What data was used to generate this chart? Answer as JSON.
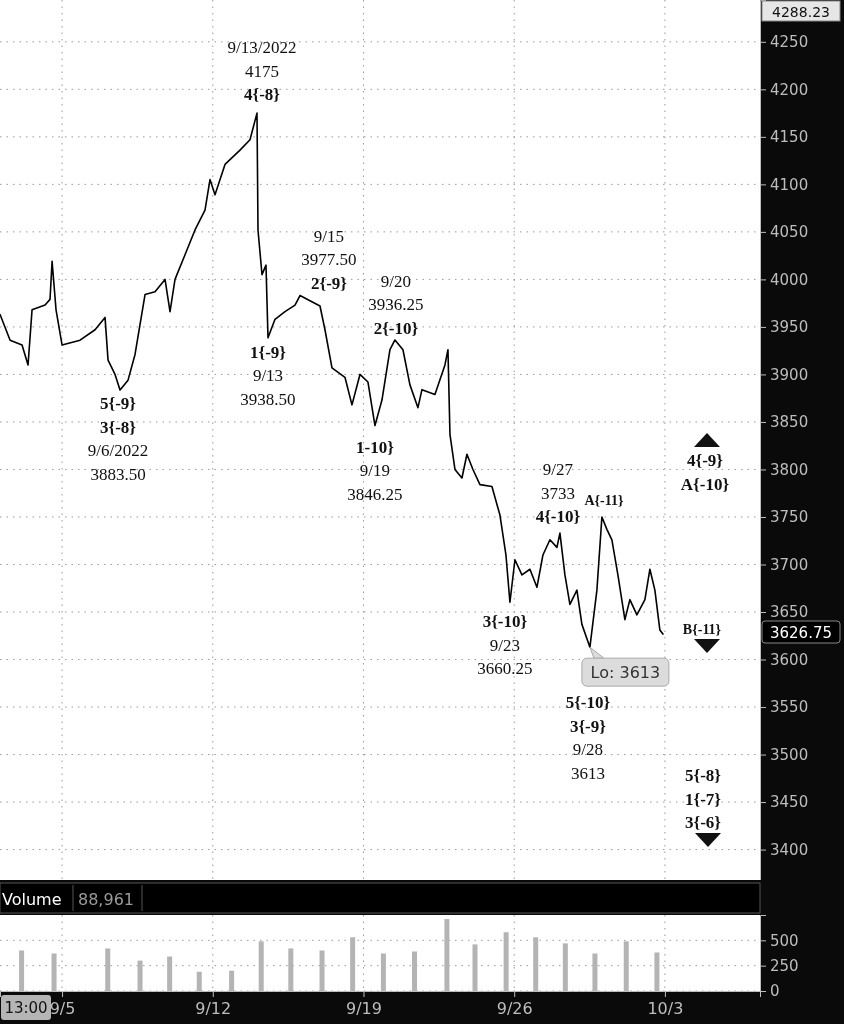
{
  "chart_data": [
    {
      "type": "line",
      "x": [
        "2022-09-02T02:54",
        "2022-09-02T14:05",
        "2022-09-03T03:24",
        "2022-09-03T10:06",
        "2022-09-03T14:34",
        "2022-09-04T05:04",
        "2022-09-04T10:36",
        "2022-09-04T12:54",
        "2022-09-04T17:18",
        "2022-09-05T00:00",
        "2022-09-05T20:04",
        "2022-09-06T12:47",
        "2022-09-06T23:55",
        "2022-09-07T03:16",
        "2022-09-07T11:04",
        "2022-09-07T16:38",
        "2022-09-08T01:33",
        "2022-09-08T09:21",
        "2022-09-08T20:30",
        "2022-09-09T07:38",
        "2022-09-09T18:47",
        "2022-09-10T00:21",
        "2022-09-10T05:55",
        "2022-09-10T17:04",
        "2022-09-11T04:12",
        "2022-09-11T15:21",
        "2022-09-11T20:55",
        "2022-09-12T02:30",
        "2022-09-12T13:38",
        "2022-09-13T06:22",
        "2022-09-13T17:30",
        "2022-09-14T01:18",
        "2022-09-14T02:25",
        "2022-09-14T06:53",
        "2022-09-14T11:20",
        "2022-09-14T13:34",
        "2022-09-14T21:22",
        "2022-09-15T08:31",
        "2022-09-15T19:40",
        "2022-09-16T01:14",
        "2022-09-16T12:22",
        "2022-09-16T23:31",
        "2022-09-17T05:05",
        "2022-09-17T12:53",
        "2022-09-18T03:22",
        "2022-09-18T11:10",
        "2022-09-18T20:05",
        "2022-09-19T05:00",
        "2022-09-19T12:48",
        "2022-09-19T20:36",
        "2022-09-20T05:31",
        "2022-09-20T11:05",
        "2022-09-20T20:00",
        "2022-09-21T03:48",
        "2022-09-21T12:43",
        "2022-09-21T17:11",
        "2022-09-22T07:40",
        "2022-09-22T18:49",
        "2022-09-22T22:10",
        "2022-09-23T00:24",
        "2022-09-23T05:58",
        "2022-09-23T13:46",
        "2022-09-23T19:20",
        "2022-09-24T02:01",
        "2022-09-24T09:49",
        "2022-09-24T23:11",
        "2022-09-25T08:07",
        "2022-09-25T14:48",
        "2022-09-25T19:15",
        "2022-09-26T00:50",
        "2022-09-26T08:38",
        "2022-09-26T17:33",
        "2022-09-27T01:21",
        "2022-09-27T08:02",
        "2022-09-27T15:50",
        "2022-09-27T23:38",
        "2022-09-28T02:59",
        "2022-09-28T08:33",
        "2022-09-28T14:07",
        "2022-09-28T21:55",
        "2022-09-29T03:29",
        "2022-09-29T12:24",
        "2022-09-29T20:12",
        "2022-09-30T01:46",
        "2022-09-30T07:20",
        "2022-09-30T12:55",
        "2022-09-30T19:36",
        "2022-10-01T03:24",
        "2022-10-01T08:58",
        "2022-10-01T16:46",
        "2022-10-02T01:42",
        "2022-10-02T07:16",
        "2022-10-02T12:50",
        "2022-10-02T18:24",
        "2022-10-02T21:46"
      ],
      "series": [
        {
          "color": "#000000",
          "values": [
            3963,
            3936,
            3931,
            3910,
            3968,
            3973,
            3979,
            4019,
            3968,
            3931,
            3936,
            3947,
            3960,
            3915,
            3900,
            3883.5,
            3894,
            3921,
            3984,
            3987,
            4000,
            3966,
            4000,
            4026,
            4052,
            4073,
            4105,
            4089,
            4121,
            4136,
            4147,
            4175,
            4052,
            4005,
            4015,
            3938.5,
            3958,
            3966,
            3973,
            3983,
            3977.5,
            3972,
            3947,
            3907,
            3897,
            3868,
            3900,
            3892,
            3846.25,
            3873,
            3926,
            3936.25,
            3926,
            3889,
            3865,
            3884,
            3879,
            3910,
            3926,
            3837,
            3800,
            3791,
            3816,
            3800,
            3784,
            3782,
            3752,
            3710,
            3660.25,
            3705,
            3689,
            3695,
            3676,
            3710,
            3726,
            3718,
            3733,
            3689,
            3658,
            3673,
            3637,
            3613,
            3673,
            3750,
            3737,
            3726,
            3689,
            3642,
            3663,
            3647,
            3663,
            3695,
            3673,
            3631,
            3626.75
          ]
        }
      ],
      "xlim": [
        "2022-09-02T02:50",
        "2022-10-07T10:00"
      ],
      "ylim": [
        3368,
        4294
      ],
      "xticks": [
        {
          "value": "2022-09-05",
          "label": null
        },
        {
          "value": "2022-09-12",
          "label": null
        },
        {
          "value": "2022-09-19",
          "label": null
        },
        {
          "value": "2022-09-26",
          "label": null
        },
        {
          "value": "2022-10-03",
          "label": null
        }
      ],
      "yticks": [
        3400,
        3450,
        3500,
        3550,
        3600,
        3650,
        3700,
        3750,
        3800,
        3850,
        3900,
        3950,
        4000,
        4050,
        4100,
        4150,
        4200,
        4250
      ],
      "tick_labels": "y",
      "grid": true,
      "marker": "none",
      "line_style": "solid",
      "annotations": [
        {
          "text": "9/13/2022\n4175\n4{-8}",
          "x": "2022-09-14T01:18",
          "y": 4175
        },
        {
          "text": "9/15\n3977.50\n2{-9}",
          "x": "2022-09-16T12:22",
          "y": 3977.5
        },
        {
          "text": "9/20\n3936.25\n2{-10}",
          "x": "2022-09-20T11:05",
          "y": 3936.25
        },
        {
          "text": "1{-9}\n9/13\n3938.50",
          "x": "2022-09-14T13:34",
          "y": 3938.5
        },
        {
          "text": "5{-9}\n3{-8}\n9/6/2022\n3883.50",
          "x": "2022-09-07T16:38",
          "y": 3883.5
        },
        {
          "text": "1-10}\n9/19\n3846.25",
          "x": "2022-09-19T12:48",
          "y": 3846.25
        },
        {
          "text": "3{-10}\n9/23\n3660.25",
          "x": "2022-09-25T19:15",
          "y": 3660.25
        },
        {
          "text": "9/27\n3733\n4{-10}",
          "x": "2022-09-28T02:59",
          "y": 3733
        },
        {
          "text": "A{-11}",
          "x": "2022-09-30T01:46",
          "y": 3750
        },
        {
          "text": "Lo: 3613",
          "x": "2022-09-29T12:24",
          "y": 3613
        },
        {
          "text": "5{-10}\n3{-9}\n9/28\n3613",
          "x": "2022-09-29T12:24",
          "y": 3613
        },
        "4{-9}\nA{-10}",
        "B{-11}",
        "5{-8}\n1{-7}\n3{-6}",
        "4288.23",
        "3626.75"
      ]
    },
    {
      "type": "bar",
      "title": "Volume",
      "subtitle": "88,961",
      "color": "#b4b4b4",
      "x": [
        "2022-09-03T02:54",
        "2022-09-04T15:05",
        "2022-09-07T02:56",
        "2022-09-08T14:56",
        "2022-09-09T23:56",
        "2022-09-11T08:55",
        "2022-09-12T21:00",
        "2022-09-14T06:00",
        "2022-09-15T15:00",
        "2022-09-17T01:48",
        "2022-09-18T11:56",
        "2022-09-19T22:12",
        "2022-09-21T08:54",
        "2022-09-22T21:00",
        "2022-09-24T04:18",
        "2022-09-25T15:00",
        "2022-09-27T00:00",
        "2022-09-28T09:00",
        "2022-09-29T18:00",
        "2022-10-01T04:54",
        "2022-10-02T15:06"
      ],
      "values": [
        400,
        370,
        420,
        300,
        340,
        190,
        200,
        490,
        420,
        400,
        530,
        370,
        390,
        710,
        460,
        580,
        530,
        470,
        370,
        490,
        380
      ],
      "xlim": [
        "2022-09-02T02:50",
        "2022-10-07T10:00"
      ],
      "ylim": [
        0,
        750
      ],
      "xticks": [
        {
          "value": "2022-09-05",
          "label": "9/5"
        },
        {
          "value": "2022-09-12",
          "label": "9/12"
        },
        {
          "value": "2022-09-19",
          "label": "9/19"
        },
        {
          "value": "2022-09-26",
          "label": "9/26"
        },
        {
          "value": "2022-10-03",
          "label": "10/3"
        }
      ],
      "yticks": [
        0,
        250,
        500
      ],
      "grid": true,
      "annotations": [
        "13:00"
      ]
    }
  ]
}
